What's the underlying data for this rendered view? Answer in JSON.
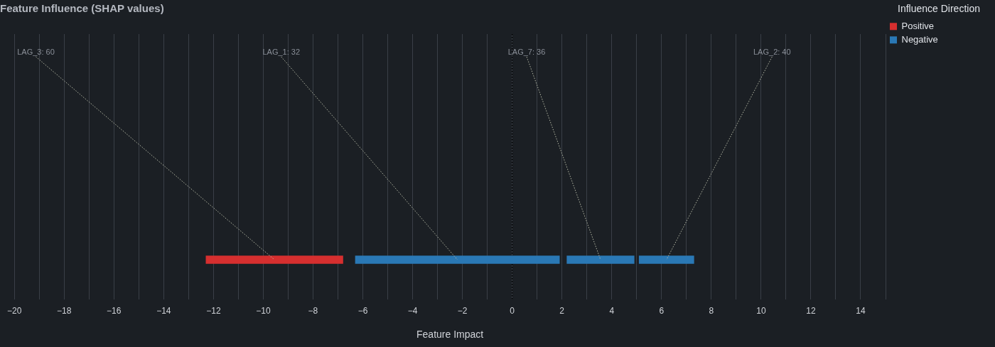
{
  "chart_data": {
    "type": "bar",
    "title": "Feature Influence (SHAP values)",
    "xlabel": "Feature Impact",
    "legend_title": "Influence Direction",
    "orientation": "horizontal",
    "categories": [
      null
    ],
    "series": [
      {
        "name": "Positive",
        "color": "#d62f2f",
        "values": [
          5.5
        ],
        "base": [
          -12.3
        ],
        "value_labels": [
          "LAG_3: 60"
        ]
      },
      {
        "name": "Negative",
        "color": "#2a78b5",
        "values": [
          -8.2
        ],
        "base": [
          1.9
        ],
        "value_labels": [
          "LAG_1: 32"
        ]
      },
      {
        "color": "#2a78b5",
        "values": [
          -2.7
        ],
        "base": [
          4.9
        ],
        "value_labels": [
          "LAG_7: 36"
        ]
      },
      {
        "color": "#2a78b5",
        "values": [
          -2.2
        ],
        "base": [
          7.3
        ],
        "value_labels": [
          "LAG_2: 40"
        ]
      }
    ],
    "xlim": [
      -20,
      15
    ],
    "xticks": [
      {
        "value": -20,
        "label": "−20"
      },
      {
        "value": -19,
        "label": null
      },
      {
        "value": -18,
        "label": "−18"
      },
      {
        "value": -17,
        "label": null
      },
      {
        "value": -16,
        "label": "−16"
      },
      {
        "value": -15,
        "label": null
      },
      {
        "value": -14,
        "label": "−14"
      },
      {
        "value": -13,
        "label": null
      },
      {
        "value": -12,
        "label": "−12"
      },
      {
        "value": -11,
        "label": null
      },
      {
        "value": -10,
        "label": "−10"
      },
      {
        "value": -9,
        "label": null
      },
      {
        "value": -8,
        "label": "−8"
      },
      {
        "value": -7,
        "label": null
      },
      {
        "value": -6,
        "label": "−6"
      },
      {
        "value": -5,
        "label": null
      },
      {
        "value": -4,
        "label": "−4"
      },
      {
        "value": -3,
        "label": null
      },
      {
        "value": -2,
        "label": "−2"
      },
      {
        "value": -1,
        "label": null
      },
      0,
      {
        "value": 1,
        "label": null
      },
      2,
      {
        "value": 3,
        "label": null
      },
      4,
      {
        "value": 5,
        "label": null
      },
      6,
      {
        "value": 7,
        "label": null
      },
      8,
      {
        "value": 9,
        "label": null
      },
      10,
      {
        "value": 11,
        "label": null
      },
      12,
      {
        "value": 13,
        "label": null
      },
      14,
      {
        "value": 15,
        "label": null
      }
    ],
    "ref_lines": [
      {
        "axis": "x",
        "value": 0,
        "color": "#000000",
        "line_style": "dotted"
      }
    ],
    "grid": "x",
    "legend": "top right"
  }
}
